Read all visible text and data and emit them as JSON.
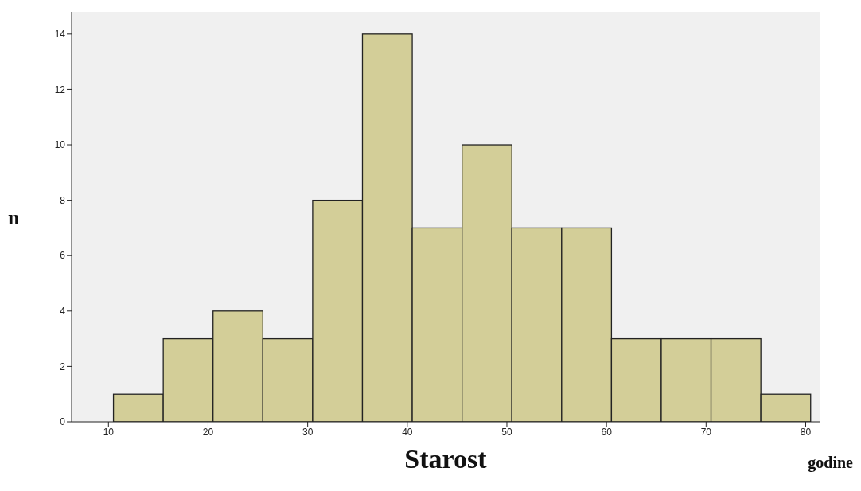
{
  "chart_data": {
    "type": "histogram",
    "xlabel": "Starost",
    "ylabel": "n",
    "annotations": [
      "godine"
    ],
    "bins": [
      10.5,
      15.5,
      20.5,
      25.5,
      30.5,
      35.5,
      40.5,
      45.5,
      50.5,
      55.5,
      60.5,
      65.5,
      70.5,
      75.5,
      80.5
    ],
    "values": [
      1,
      3,
      4,
      3,
      8,
      14,
      7,
      10,
      7,
      7,
      3,
      3,
      3,
      1
    ],
    "color": "#d3ce98",
    "xlim": [
      6.3,
      81.4
    ],
    "xticks": [
      10,
      20,
      30,
      40,
      50,
      60,
      70,
      80
    ],
    "ylim": [
      0,
      14.8
    ],
    "yticks": [
      0,
      2,
      4,
      6,
      8,
      10,
      12,
      14
    ],
    "grid": false
  }
}
